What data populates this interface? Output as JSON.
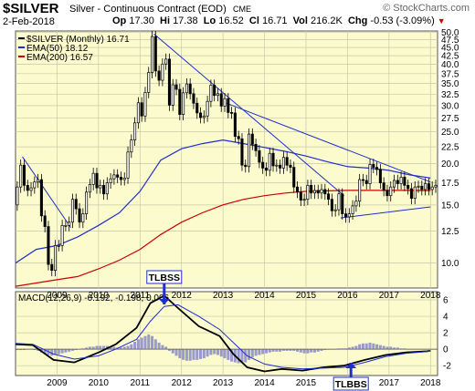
{
  "header": {
    "symbol": "$SILVER",
    "subtitle": "Silver - Continuous Contract (EOD)",
    "exchange": "CME",
    "brand": "© StockCharts.com",
    "date": "2-Feb-2018",
    "open_label": "Op",
    "open": "17.30",
    "high_label": "Hi",
    "high": "17.38",
    "low_label": "Lo",
    "low": "16.52",
    "close_label": "Cl",
    "close": "16.71",
    "vol_label": "Vol",
    "vol": "216.2K",
    "chg_label": "Chg",
    "chg": "-0.53 (-3.09%)",
    "chg_arrow": "▼"
  },
  "chart_data": [
    {
      "type": "candlestick",
      "legend": [
        {
          "label": "$SILVER (Monthly) 16.71",
          "color": "#000000"
        },
        {
          "label": "EMA(50) 18.12",
          "color": "#1f2ecc"
        },
        {
          "label": "EMA(200) 16.57",
          "color": "#cc0000"
        }
      ],
      "x_ticks": [
        "2009",
        "2010",
        "2011",
        "2012",
        "2013",
        "2014",
        "2015",
        "2016",
        "2017",
        "2018"
      ],
      "y_ticks": [
        10.0,
        12.5,
        15.0,
        17.5,
        20.0,
        22.5,
        25.0,
        27.5,
        30.0,
        32.5,
        35.0,
        37.5,
        40.0,
        42.5,
        45.0,
        47.5,
        50.0
      ],
      "y_tick_labels": [
        "10.0",
        "12.5",
        "15.0",
        "17.5",
        "20.0",
        "22.5",
        "25.0",
        "27.5",
        "30.0",
        "32.5",
        "35.0",
        "37.5",
        "40.0",
        "42.5",
        "45.0",
        "47.5",
        "50.0"
      ],
      "ylim": [
        8.4,
        50.5
      ],
      "scale": "log",
      "grid": true,
      "legend_position": "top-left",
      "bar_color": "#000000",
      "candles": {
        "start": "2008-01",
        "close": [
          17.0,
          19.8,
          17.2,
          16.6,
          16.9,
          17.6,
          17.9,
          13.9,
          12.9,
          9.9,
          9.5,
          11.3,
          11.3,
          13.0,
          13.0,
          13.3,
          15.6,
          14.6,
          13.3,
          14.1,
          16.4,
          17.3,
          18.7,
          16.9,
          17.2,
          16.2,
          17.5,
          18.0,
          18.5,
          18.2,
          17.9,
          18.1,
          21.7,
          23.6,
          26.6,
          30.6,
          27.9,
          32.9,
          37.8,
          48.6,
          38.2,
          35.8,
          40.1,
          41.5,
          30.1,
          34.7,
          33.6,
          28.2,
          32.8,
          34.9,
          32.6,
          30.5,
          28.5,
          27.6,
          27.9,
          30.9,
          34.6,
          32.2,
          32.6,
          29.9,
          31.5,
          28.6,
          28.5,
          24.2,
          23.8,
          19.8,
          19.6,
          24.6,
          22.9,
          21.9,
          20.2,
          19.4,
          19.1,
          21.5,
          19.7,
          19.8,
          19.4,
          20.9,
          19.8,
          19.5,
          17.0,
          16.4,
          15.5,
          15.6,
          17.2,
          16.3,
          16.6,
          16.3,
          16.7,
          16.2,
          15.6,
          14.4,
          14.5,
          16.2,
          14.1,
          13.8,
          14.1,
          14.9,
          15.4,
          17.9,
          17.8,
          17.4,
          19.9,
          19.5,
          19.2,
          17.5,
          16.6,
          16.0,
          17.0,
          17.8,
          17.4,
          18.2,
          17.2,
          16.8,
          15.7,
          17.0,
          17.1,
          16.7,
          17.4,
          16.7,
          17.0,
          17.2,
          16.7
        ],
        "open": [
          15.0,
          17.0,
          19.8,
          17.2,
          16.6,
          16.9,
          17.6,
          17.9,
          13.9,
          12.9,
          9.9,
          9.5,
          11.3,
          11.3,
          13.0,
          13.0,
          13.3,
          15.6,
          14.6,
          13.3,
          14.1,
          16.4,
          17.3,
          18.7,
          16.9,
          17.2,
          16.2,
          17.5,
          18.0,
          18.5,
          18.2,
          17.9,
          18.1,
          21.7,
          23.6,
          26.6,
          30.6,
          27.9,
          32.9,
          37.8,
          48.6,
          38.2,
          35.8,
          40.1,
          41.5,
          30.1,
          34.7,
          33.6,
          28.2,
          32.8,
          34.9,
          32.6,
          30.5,
          28.5,
          27.6,
          27.9,
          30.9,
          34.6,
          32.2,
          32.6,
          29.9,
          31.5,
          28.6,
          28.5,
          24.2,
          23.8,
          19.8,
          19.6,
          24.6,
          22.9,
          21.9,
          20.2,
          19.4,
          19.1,
          21.5,
          19.7,
          19.8,
          19.4,
          20.9,
          19.8,
          19.5,
          17.0,
          16.4,
          15.5,
          15.6,
          17.2,
          16.3,
          16.6,
          16.3,
          16.7,
          16.2,
          15.6,
          14.4,
          14.5,
          16.2,
          14.1,
          13.8,
          14.1,
          14.9,
          15.4,
          17.9,
          17.8,
          17.4,
          19.9,
          19.5,
          19.2,
          17.5,
          16.6,
          16.0,
          17.0,
          17.8,
          17.4,
          18.2,
          17.2,
          16.8,
          15.7,
          17.0,
          17.1,
          16.7,
          17.4,
          16.7,
          17.0,
          17.2
        ]
      },
      "ema50": {
        "x": [
          "2008-01",
          "2008-07",
          "2009-01",
          "2009-07",
          "2010-01",
          "2010-07",
          "2011-01",
          "2011-07",
          "2012-01",
          "2012-07",
          "2013-01",
          "2013-07",
          "2014-01",
          "2014-07",
          "2015-01",
          "2015-07",
          "2016-01",
          "2016-07",
          "2017-01",
          "2017-07",
          "2018-01"
        ],
        "y": [
          10.0,
          11.0,
          11.3,
          12.0,
          13.0,
          14.2,
          16.5,
          20.5,
          22.2,
          23.0,
          23.6,
          23.0,
          22.4,
          21.8,
          21.1,
          20.3,
          19.6,
          19.4,
          19.1,
          18.5,
          18.1
        ]
      },
      "ema200": {
        "x": [
          "2008-01",
          "2008-07",
          "2009-01",
          "2009-07",
          "2010-01",
          "2010-07",
          "2011-01",
          "2011-07",
          "2012-01",
          "2012-07",
          "2013-01",
          "2013-07",
          "2014-01",
          "2014-07",
          "2015-01",
          "2015-07",
          "2016-01",
          "2016-07",
          "2017-01",
          "2017-07",
          "2018-01"
        ],
        "y": [
          8.5,
          8.7,
          8.9,
          9.1,
          9.6,
          10.2,
          11.0,
          12.2,
          13.3,
          14.2,
          15.0,
          15.6,
          16.0,
          16.3,
          16.5,
          16.55,
          16.6,
          16.6,
          16.6,
          16.6,
          16.57
        ]
      },
      "trendlines": [
        {
          "x": [
            "2008-03",
            "2009-05"
          ],
          "y": [
            21.0,
            12.8
          ],
          "color": "#1f2ecc"
        },
        {
          "x": [
            "2011-05",
            "2015-12"
          ],
          "y": [
            49.5,
            16.0
          ],
          "color": "#1f2ecc"
        },
        {
          "x": [
            "2013-02",
            "2018-01"
          ],
          "y": [
            30.5,
            17.6
          ],
          "color": "#1f2ecc"
        },
        {
          "x": [
            "2015-11",
            "2018-01"
          ],
          "y": [
            13.7,
            14.8
          ],
          "color": "#1f2ecc"
        }
      ],
      "annotations": [
        {
          "text": "TLBSS",
          "x": "2011-08",
          "arrow": "down"
        }
      ]
    },
    {
      "type": "line",
      "legend": [
        {
          "label": "MACD(12,26,9) -0.192, -0.198, 0.006"
        }
      ],
      "x_ticks": [
        "2009",
        "2010",
        "2011",
        "2012",
        "2013",
        "2014",
        "2015",
        "2016",
        "2017",
        "2018"
      ],
      "y_ticks": [
        -2,
        0,
        2,
        4,
        6
      ],
      "ylim": [
        -3.2,
        7.0
      ],
      "grid": true,
      "series": [
        {
          "name": "MACD",
          "color": "#000000",
          "x": [
            "2008-01",
            "2008-06",
            "2008-12",
            "2009-06",
            "2010-01",
            "2010-06",
            "2010-12",
            "2011-04",
            "2011-08",
            "2011-12",
            "2012-06",
            "2012-12",
            "2013-04",
            "2013-08",
            "2014-01",
            "2014-06",
            "2014-12",
            "2015-06",
            "2015-12",
            "2016-06",
            "2016-12",
            "2017-06",
            "2017-12",
            "2018-01"
          ],
          "y": [
            0.6,
            0.5,
            -1.3,
            -1.6,
            -0.4,
            0.6,
            2.6,
            5.6,
            6.5,
            5.0,
            2.8,
            1.6,
            -0.6,
            -2.2,
            -2.7,
            -2.4,
            -2.6,
            -2.2,
            -2.0,
            -1.3,
            -0.7,
            -0.4,
            -0.25,
            -0.19
          ]
        },
        {
          "name": "Signal",
          "color": "#1f2ecc",
          "x": [
            "2008-01",
            "2008-06",
            "2008-12",
            "2009-06",
            "2010-01",
            "2010-06",
            "2010-12",
            "2011-04",
            "2011-08",
            "2011-12",
            "2012-06",
            "2012-12",
            "2013-04",
            "2013-08",
            "2014-01",
            "2014-06",
            "2014-12",
            "2015-06",
            "2015-12",
            "2016-06",
            "2016-12",
            "2017-06",
            "2017-12",
            "2018-01"
          ],
          "y": [
            0.7,
            0.6,
            -0.6,
            -1.2,
            -0.8,
            0.0,
            1.2,
            3.4,
            5.2,
            5.4,
            4.0,
            2.4,
            0.8,
            -0.8,
            -1.8,
            -2.2,
            -2.4,
            -2.3,
            -2.2,
            -1.6,
            -0.9,
            -0.5,
            -0.3,
            -0.2
          ]
        }
      ],
      "histogram": {
        "x_start": "2008-01",
        "values": [
          -0.1,
          -0.1,
          -0.1,
          0.0,
          0.0,
          -0.1,
          -0.2,
          -0.4,
          -0.6,
          -0.7,
          -0.8,
          -0.7,
          -0.6,
          -0.5,
          -0.4,
          -0.3,
          -0.2,
          -0.1,
          0.0,
          0.1,
          0.2,
          0.3,
          0.3,
          0.4,
          0.4,
          0.4,
          0.4,
          0.3,
          0.3,
          0.2,
          0.2,
          0.3,
          0.4,
          0.6,
          0.9,
          1.2,
          1.4,
          1.6,
          1.8,
          1.6,
          1.2,
          0.8,
          0.5,
          0.3,
          -0.2,
          -0.5,
          -0.8,
          -1.1,
          -1.3,
          -1.4,
          -1.4,
          -1.3,
          -1.3,
          -1.2,
          -1.1,
          -0.9,
          -0.7,
          -0.6,
          -0.7,
          -0.9,
          -1.1,
          -1.3,
          -1.5,
          -1.6,
          -1.7,
          -1.7,
          -1.6,
          -1.3,
          -1.0,
          -0.8,
          -0.7,
          -0.6,
          -0.5,
          -0.4,
          -0.3,
          -0.3,
          -0.3,
          -0.2,
          -0.2,
          -0.2,
          -0.2,
          -0.3,
          -0.4,
          -0.5,
          -0.5,
          -0.4,
          -0.4,
          -0.3,
          -0.2,
          -0.1,
          0.0,
          0.0,
          0.0,
          0.1,
          0.1,
          0.1,
          0.2,
          0.3,
          0.4,
          0.6,
          0.7,
          0.7,
          0.8,
          0.7,
          0.6,
          0.5,
          0.4,
          0.3,
          0.3,
          0.2,
          0.2,
          0.1,
          0.1,
          0.0,
          0.0,
          0.0,
          0.0,
          0.0,
          0.0,
          0.0,
          0.0,
          0.0,
          0.0
        ]
      },
      "histogram_color": "#9a9acc",
      "annotations": [
        {
          "text": "TLBBS",
          "x": "2016-02",
          "arrow": "up"
        }
      ]
    }
  ]
}
